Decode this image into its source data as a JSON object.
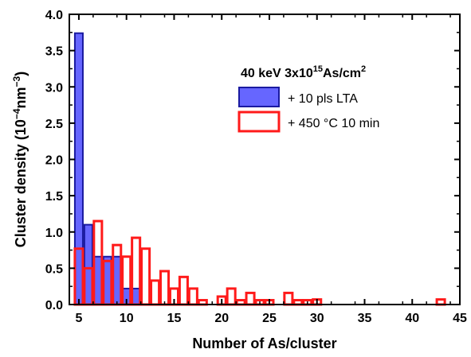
{
  "chart_data": {
    "type": "bar",
    "xlabel": "Number of As/cluster",
    "ylabel": {
      "main": "Cluster density (10",
      "exp1": "−4",
      "mid": "nm",
      "exp2": "−3",
      "end": ")"
    },
    "xlim": [
      4,
      45
    ],
    "ylim": [
      0,
      4.0
    ],
    "x_ticks": [
      5,
      10,
      15,
      20,
      25,
      30,
      35,
      40,
      45
    ],
    "y_ticks": [
      0.0,
      0.5,
      1.0,
      1.5,
      2.0,
      2.5,
      3.0,
      3.5,
      4.0
    ],
    "x_tick_labels": [
      "5",
      "10",
      "15",
      "20",
      "25",
      "30",
      "35",
      "40",
      "45"
    ],
    "y_tick_labels": [
      "0.0",
      "0.5",
      "1.0",
      "1.5",
      "2.0",
      "2.5",
      "3.0",
      "3.5",
      "4.0"
    ],
    "legend": {
      "placement": "top-right",
      "title": {
        "prefix": "40 keV 3x10",
        "sup1": "15",
        "mid": "As/cm",
        "sup2": "2"
      }
    },
    "series": [
      {
        "name": "+ 10 pls LTA",
        "fill_color": "#4b4bff",
        "edge_color": "#1a1aa0",
        "fill_opacity": 0.85,
        "x": [
          5,
          6,
          7,
          8,
          9,
          10,
          11
        ],
        "values": [
          3.74,
          1.1,
          0.66,
          0.66,
          0.66,
          0.22,
          0.22
        ]
      },
      {
        "name": "+ 450 °C 10 min",
        "fill_color": "none",
        "edge_color": "#ff1a1a",
        "fill_opacity": 0,
        "x": [
          5,
          6,
          7,
          8,
          9,
          10,
          11,
          12,
          13,
          14,
          15,
          16,
          17,
          18,
          20,
          21,
          22,
          23,
          24,
          25,
          27,
          28,
          29,
          30,
          43
        ],
        "values": [
          0.77,
          0.5,
          1.15,
          0.6,
          0.82,
          0.66,
          0.92,
          0.77,
          0.33,
          0.46,
          0.22,
          0.38,
          0.22,
          0.06,
          0.11,
          0.22,
          0.06,
          0.16,
          0.06,
          0.06,
          0.16,
          0.06,
          0.06,
          0.07,
          0.07
        ]
      }
    ]
  }
}
